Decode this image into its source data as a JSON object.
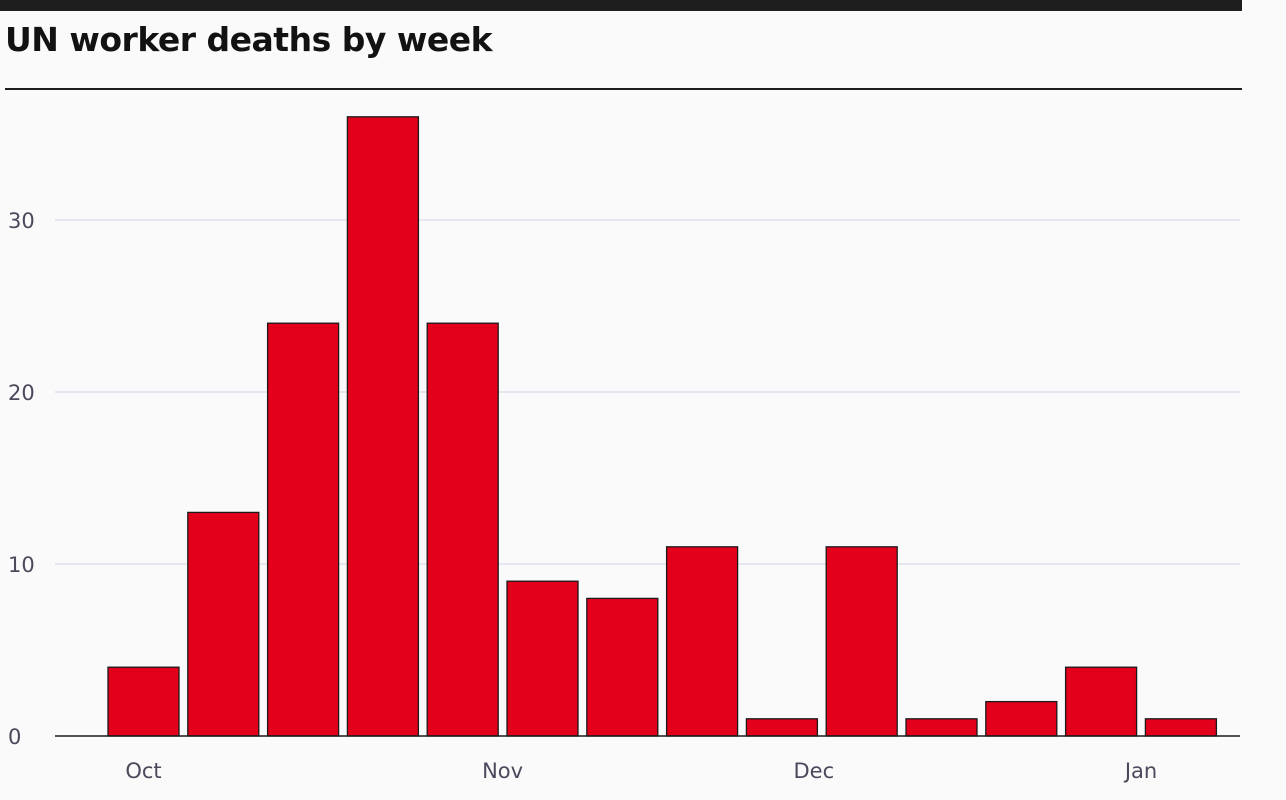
{
  "chart_data": {
    "type": "bar",
    "title": "UN worker deaths by week",
    "xlabel": "",
    "ylabel": "",
    "values": [
      4,
      13,
      24,
      36,
      24,
      9,
      8,
      11,
      1,
      11,
      1,
      2,
      4,
      1
    ],
    "ylim": [
      0,
      36
    ],
    "yticks": [
      0,
      10,
      20,
      30
    ],
    "xticks": [
      {
        "label": "Oct",
        "bar_index": 0
      },
      {
        "label": "Nov",
        "bar_index": 4.5
      },
      {
        "label": "Dec",
        "bar_index": 8.4
      },
      {
        "label": "Jan",
        "bar_index": 12.5
      }
    ],
    "grid": true,
    "bar_color": "#e2001a",
    "bar_edge_color": "#1a1a1a",
    "grid_color": "#d9dcea"
  }
}
